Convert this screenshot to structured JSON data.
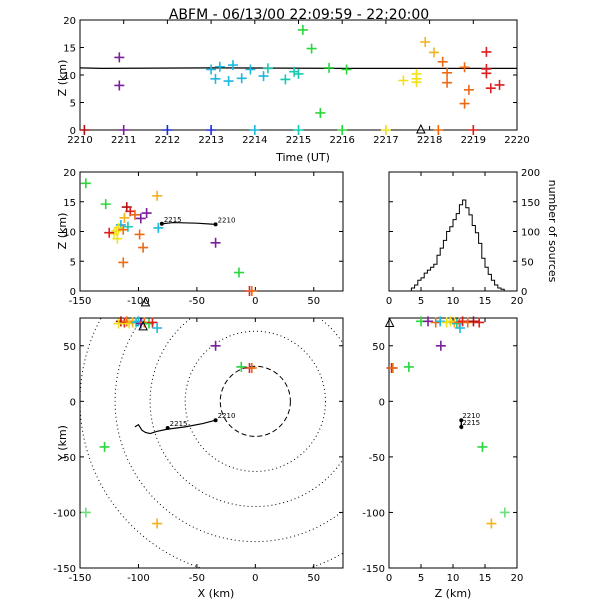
{
  "title": "ABFM - 06/13/00 22:09:59 - 22:20:00",
  "colors": {
    "ink": "#000000",
    "background": "#ffffff",
    "purple": "#7a1f9c",
    "blue": "#1f2fd6",
    "cyan": "#1fb7e0",
    "teal": "#19c9b0",
    "green": "#2bd63c",
    "lime": "#6be07a",
    "yellow": "#f2e11a",
    "gold": "#f5b21a",
    "orange": "#ec6a14",
    "red": "#dd1f1f",
    "darkred": "#b01010"
  },
  "chart_data": [
    {
      "id": "time_height",
      "type": "scatter",
      "xlabel": "Time (UT)",
      "ylabel": "Z (km)",
      "xlim": [
        2210,
        2220
      ],
      "ylim": [
        0,
        20
      ],
      "xticks": [
        "2210",
        "2211",
        "2212",
        "2213",
        "2214",
        "2215",
        "2216",
        "2217",
        "2218",
        "2219",
        "2220"
      ],
      "yticks": [
        "0",
        "5",
        "10",
        "15",
        "20"
      ],
      "line": {
        "x": [
          2210,
          2210.5,
          2213,
          2216,
          2220
        ],
        "y": [
          11.3,
          11.2,
          11.3,
          11.2,
          11.2
        ]
      },
      "points": [
        {
          "x": 2210.1,
          "y": 0,
          "c": "darkred"
        },
        {
          "x": 2210.9,
          "y": 13.2,
          "c": "purple"
        },
        {
          "x": 2210.9,
          "y": 8.1,
          "c": "purple"
        },
        {
          "x": 2211.0,
          "y": 0,
          "c": "purple"
        },
        {
          "x": 2212.0,
          "y": 0,
          "c": "blue"
        },
        {
          "x": 2213.0,
          "y": 0,
          "c": "blue"
        },
        {
          "x": 2213.0,
          "y": 11.0,
          "c": "cyan"
        },
        {
          "x": 2213.1,
          "y": 9.3,
          "c": "cyan"
        },
        {
          "x": 2213.2,
          "y": 11.5,
          "c": "cyan"
        },
        {
          "x": 2213.4,
          "y": 8.9,
          "c": "cyan"
        },
        {
          "x": 2213.5,
          "y": 11.8,
          "c": "cyan"
        },
        {
          "x": 2213.7,
          "y": 9.4,
          "c": "cyan"
        },
        {
          "x": 2213.9,
          "y": 11.0,
          "c": "cyan"
        },
        {
          "x": 2214.0,
          "y": 0,
          "c": "cyan"
        },
        {
          "x": 2214.2,
          "y": 9.8,
          "c": "cyan"
        },
        {
          "x": 2214.3,
          "y": 11.2,
          "c": "teal"
        },
        {
          "x": 2214.7,
          "y": 9.2,
          "c": "teal"
        },
        {
          "x": 2214.9,
          "y": 10.6,
          "c": "teal"
        },
        {
          "x": 2215.0,
          "y": 10.2,
          "c": "teal"
        },
        {
          "x": 2215.0,
          "y": 0,
          "c": "teal"
        },
        {
          "x": 2215.1,
          "y": 18.2,
          "c": "green"
        },
        {
          "x": 2215.3,
          "y": 14.8,
          "c": "green"
        },
        {
          "x": 2215.7,
          "y": 11.3,
          "c": "green"
        },
        {
          "x": 2216.0,
          "y": 0,
          "c": "green"
        },
        {
          "x": 2216.1,
          "y": 11.0,
          "c": "green"
        },
        {
          "x": 2215.5,
          "y": 3.1,
          "c": "green"
        },
        {
          "x": 2217.0,
          "y": 0,
          "c": "yellow"
        },
        {
          "x": 2217.4,
          "y": 9.0,
          "c": "yellow"
        },
        {
          "x": 2217.7,
          "y": 10.2,
          "c": "yellow"
        },
        {
          "x": 2217.7,
          "y": 9.3,
          "c": "yellow"
        },
        {
          "x": 2217.7,
          "y": 8.7,
          "c": "yellow"
        },
        {
          "x": 2217.9,
          "y": 16.0,
          "c": "gold"
        },
        {
          "x": 2218.1,
          "y": 14.1,
          "c": "gold"
        },
        {
          "x": 2218.2,
          "y": 0,
          "c": "orange"
        },
        {
          "x": 2218.3,
          "y": 12.4,
          "c": "orange"
        },
        {
          "x": 2218.4,
          "y": 10.4,
          "c": "orange"
        },
        {
          "x": 2218.4,
          "y": 8.6,
          "c": "orange"
        },
        {
          "x": 2218.8,
          "y": 11.4,
          "c": "orange"
        },
        {
          "x": 2218.8,
          "y": 4.8,
          "c": "orange"
        },
        {
          "x": 2218.9,
          "y": 7.3,
          "c": "orange"
        },
        {
          "x": 2219.0,
          "y": 0,
          "c": "red"
        },
        {
          "x": 2219.3,
          "y": 14.2,
          "c": "red"
        },
        {
          "x": 2219.3,
          "y": 10.3,
          "c": "red"
        },
        {
          "x": 2219.3,
          "y": 11.1,
          "c": "red"
        },
        {
          "x": 2219.4,
          "y": 7.6,
          "c": "red"
        },
        {
          "x": 2219.6,
          "y": 8.2,
          "c": "red"
        }
      ],
      "markers": [
        {
          "x": 2217.8,
          "y": 0,
          "shape": "triangle"
        }
      ]
    },
    {
      "id": "x_height",
      "type": "scatter",
      "ylabel": "Z (km)",
      "xlim": [
        -150,
        75
      ],
      "ylim": [
        0,
        20
      ],
      "xticks": [
        "-150",
        "-100",
        "-50",
        "0",
        "50"
      ],
      "yticks": [
        "0",
        "5",
        "10",
        "15",
        "20"
      ],
      "track": {
        "x": [
          -80,
          -70,
          -50,
          -34
        ],
        "y": [
          11.3,
          11.5,
          11.4,
          11.2
        ]
      },
      "track_labels": [
        {
          "text": "2215",
          "x": -80,
          "y": 11.3
        },
        {
          "text": "2210",
          "x": -34,
          "y": 11.2
        }
      ],
      "points": [
        {
          "x": -145,
          "y": 18.1,
          "c": "green"
        },
        {
          "x": -128,
          "y": 14.6,
          "c": "green"
        },
        {
          "x": -110,
          "y": 14.1,
          "c": "darkred"
        },
        {
          "x": -107,
          "y": 13.4,
          "c": "red"
        },
        {
          "x": -103,
          "y": 12.8,
          "c": "orange"
        },
        {
          "x": -112,
          "y": 12.3,
          "c": "gold"
        },
        {
          "x": -115,
          "y": 11.1,
          "c": "cyan"
        },
        {
          "x": -117,
          "y": 10.6,
          "c": "yellow"
        },
        {
          "x": -119,
          "y": 10.1,
          "c": "yellow"
        },
        {
          "x": -121,
          "y": 9.6,
          "c": "yellow"
        },
        {
          "x": -113,
          "y": 10.3,
          "c": "orange"
        },
        {
          "x": -109,
          "y": 10.8,
          "c": "teal"
        },
        {
          "x": -118,
          "y": 8.8,
          "c": "yellow"
        },
        {
          "x": -125,
          "y": 9.8,
          "c": "red"
        },
        {
          "x": -98,
          "y": 12.2,
          "c": "purple"
        },
        {
          "x": -93,
          "y": 13.1,
          "c": "purple"
        },
        {
          "x": -99,
          "y": 9.5,
          "c": "orange"
        },
        {
          "x": -96,
          "y": 7.3,
          "c": "orange"
        },
        {
          "x": -113,
          "y": 4.8,
          "c": "orange"
        },
        {
          "x": -84,
          "y": 16.0,
          "c": "gold"
        },
        {
          "x": -83,
          "y": 10.6,
          "c": "cyan"
        },
        {
          "x": -34,
          "y": 8.1,
          "c": "purple"
        },
        {
          "x": -14,
          "y": 3.1,
          "c": "green"
        },
        {
          "x": -5,
          "y": 0,
          "c": "red"
        },
        {
          "x": -3,
          "y": 0,
          "c": "orange"
        }
      ],
      "markers": [
        {
          "x": -94,
          "y": -2.0,
          "shape": "triangle"
        }
      ]
    },
    {
      "id": "height_histogram",
      "type": "histogram",
      "xlim": [
        0,
        20
      ],
      "ylim": [
        0,
        200
      ],
      "xticks": [
        "0",
        "5",
        "10",
        "15",
        "20"
      ],
      "yticks": [
        "0",
        "50",
        "100",
        "150",
        "200"
      ],
      "ylabel": "number of sources",
      "bin_width": 0.5,
      "bin_start": 3.5,
      "counts": [
        5,
        10,
        18,
        22,
        30,
        35,
        40,
        45,
        60,
        72,
        85,
        100,
        108,
        120,
        130,
        145,
        153,
        140,
        128,
        110,
        98,
        80,
        55,
        40,
        28,
        18,
        10,
        5,
        3
      ]
    },
    {
      "id": "plan_view",
      "type": "scatter",
      "xlabel": "X (km)",
      "ylabel": "Y (km)",
      "xlim": [
        -150,
        75
      ],
      "ylim": [
        -150,
        75
      ],
      "xticks": [
        "-150",
        "-100",
        "-50",
        "0",
        "50"
      ],
      "yticks": [
        "-150",
        "-100",
        "-50",
        "0",
        "50"
      ],
      "range_rings_km": [
        30,
        60,
        90,
        120,
        150
      ],
      "track": {
        "x": [
          -103,
          -100,
          -97,
          -94,
          -90,
          -84,
          -75,
          -60,
          -45,
          -34
        ],
        "y": [
          -23,
          -21,
          -26,
          -28,
          -29,
          -27,
          -25,
          -23,
          -20,
          -17
        ]
      },
      "track_labels": [
        {
          "text": "2215",
          "x": -75,
          "y": -24
        },
        {
          "text": "2210",
          "x": -34,
          "y": -17
        }
      ],
      "points": [
        {
          "x": -115,
          "y": 72,
          "c": "darkred"
        },
        {
          "x": -112,
          "y": 71,
          "c": "red"
        },
        {
          "x": -110,
          "y": 72,
          "c": "orange"
        },
        {
          "x": -108,
          "y": 70,
          "c": "yellow"
        },
        {
          "x": -105,
          "y": 71,
          "c": "gold"
        },
        {
          "x": -102,
          "y": 71,
          "c": "teal"
        },
        {
          "x": -100,
          "y": 72,
          "c": "cyan"
        },
        {
          "x": -98,
          "y": 70,
          "c": "purple"
        },
        {
          "x": -95,
          "y": 71,
          "c": "orange"
        },
        {
          "x": -91,
          "y": 70,
          "c": "green"
        },
        {
          "x": -88,
          "y": 71,
          "c": "red"
        },
        {
          "x": -84,
          "y": 66,
          "c": "cyan"
        },
        {
          "x": -117,
          "y": 70,
          "c": "yellow"
        },
        {
          "x": -34,
          "y": 50,
          "c": "purple"
        },
        {
          "x": -12,
          "y": 31,
          "c": "green"
        },
        {
          "x": -5,
          "y": 30,
          "c": "red"
        },
        {
          "x": -3,
          "y": 30,
          "c": "orange"
        },
        {
          "x": -129,
          "y": -41,
          "c": "green"
        },
        {
          "x": -145,
          "y": -100,
          "c": "lime"
        },
        {
          "x": -84,
          "y": -110,
          "c": "gold"
        }
      ],
      "markers": [
        {
          "x": -96,
          "y": 67,
          "shape": "triangle"
        }
      ]
    },
    {
      "id": "z_y_view",
      "type": "scatter",
      "xlabel": "Z (km)",
      "xlim": [
        0,
        20
      ],
      "ylim": [
        -150,
        75
      ],
      "xticks": [
        "0",
        "5",
        "10",
        "15",
        "20"
      ],
      "yticks": [
        "-150",
        "-100",
        "-50",
        "0",
        "50"
      ],
      "track": {
        "x": [
          11.2,
          11.3,
          11.3,
          11.4
        ],
        "y": [
          -17,
          -19,
          -22,
          -25
        ]
      },
      "track_labels": [
        {
          "text": "2210",
          "x": 11.3,
          "y": -17
        },
        {
          "text": "2215",
          "x": 11.3,
          "y": -23
        }
      ],
      "points": [
        {
          "x": 5.0,
          "y": 72,
          "c": "green"
        },
        {
          "x": 6.1,
          "y": 72,
          "c": "purple"
        },
        {
          "x": 7.3,
          "y": 71,
          "c": "orange"
        },
        {
          "x": 8.0,
          "y": 72,
          "c": "cyan"
        },
        {
          "x": 9.0,
          "y": 71,
          "c": "yellow"
        },
        {
          "x": 9.6,
          "y": 72,
          "c": "yellow"
        },
        {
          "x": 10.2,
          "y": 71,
          "c": "gold"
        },
        {
          "x": 10.6,
          "y": 70,
          "c": "teal"
        },
        {
          "x": 11.0,
          "y": 71,
          "c": "orange"
        },
        {
          "x": 11.5,
          "y": 72,
          "c": "red"
        },
        {
          "x": 12.3,
          "y": 71,
          "c": "orange"
        },
        {
          "x": 13.2,
          "y": 72,
          "c": "darkred"
        },
        {
          "x": 14.1,
          "y": 71,
          "c": "red"
        },
        {
          "x": 11.1,
          "y": 66,
          "c": "cyan"
        },
        {
          "x": 8.1,
          "y": 50,
          "c": "purple"
        },
        {
          "x": 3.1,
          "y": 31,
          "c": "green"
        },
        {
          "x": 0.4,
          "y": 30,
          "c": "red"
        },
        {
          "x": 0.6,
          "y": 30,
          "c": "orange"
        },
        {
          "x": 14.6,
          "y": -41,
          "c": "green"
        },
        {
          "x": 18.1,
          "y": -100,
          "c": "lime"
        },
        {
          "x": 16.0,
          "y": -110,
          "c": "gold"
        }
      ],
      "markers": [
        {
          "x": 0.1,
          "y": 70,
          "shape": "triangle"
        }
      ]
    }
  ]
}
